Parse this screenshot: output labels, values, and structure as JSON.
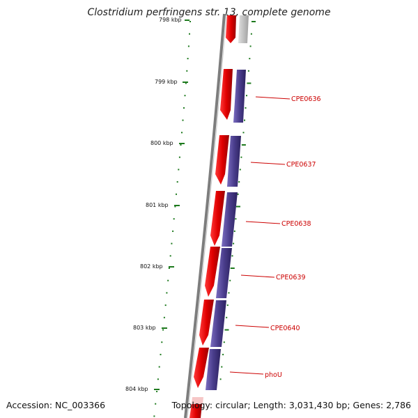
{
  "header": {
    "title": "Clostridium perfringens str. 13, complete genome"
  },
  "footer": {
    "accession": "Accession: NC_003366",
    "summary": "Topology: circular; Length: 3,031,430 bp; Genes: 2,786"
  },
  "scale": {
    "labels": [
      "798 kbp",
      "799 kbp",
      "800 kbp",
      "801 kbp",
      "802 kbp",
      "803 kbp",
      "804 kbp"
    ]
  },
  "genes": [
    {
      "name": "CPE0636"
    },
    {
      "name": "CPE0637"
    },
    {
      "name": "CPE0638"
    },
    {
      "name": "CPE0639"
    },
    {
      "name": "CPE0640"
    },
    {
      "name": "phoU"
    }
  ],
  "colors": {
    "cds_forward": "#e00000",
    "cds_track": "#4a3d8c",
    "tick": "#1e7a1e",
    "backbone": "#808080",
    "label": "#cc0000"
  }
}
